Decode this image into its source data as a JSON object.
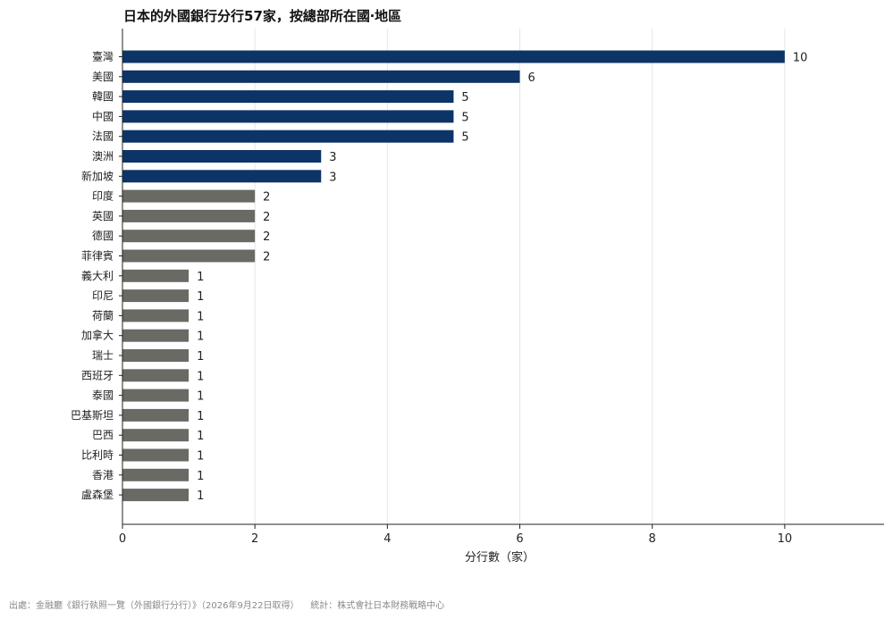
{
  "title": "日本的外國銀行分行57家，按總部所在國‧地區",
  "footer": {
    "source": "出處：金融廳《銀行執照一覽（外國銀行分行）》（2026年9月22日取得）",
    "credit": "統計：株式會社日本財務戰略中心"
  },
  "colors": {
    "highlight": "#0d3466",
    "other": "#6a6a64",
    "grid": "#e6e6e6",
    "axis": "#222222"
  },
  "chart_data": {
    "type": "bar",
    "orientation": "horizontal",
    "title": "日本的外國銀行分行57家，按總部所在國‧地區",
    "xlabel": "分行數（家）",
    "ylabel": "",
    "xlim": [
      0,
      11.5
    ],
    "xticks": [
      0,
      2,
      4,
      6,
      8,
      10
    ],
    "grid": "vertical",
    "legend": "none",
    "categories": [
      "臺灣",
      "美國",
      "韓國",
      "中國",
      "法國",
      "澳洲",
      "新加坡",
      "印度",
      "英國",
      "德國",
      "菲律賓",
      "義大利",
      "印尼",
      "荷蘭",
      "加拿大",
      "瑞士",
      "西班牙",
      "泰國",
      "巴基斯坦",
      "巴西",
      "比利時",
      "香港",
      "盧森堡"
    ],
    "values": [
      10,
      6,
      5,
      5,
      5,
      3,
      3,
      2,
      2,
      2,
      2,
      1,
      1,
      1,
      1,
      1,
      1,
      1,
      1,
      1,
      1,
      1,
      1
    ],
    "highlight_count": 7
  }
}
